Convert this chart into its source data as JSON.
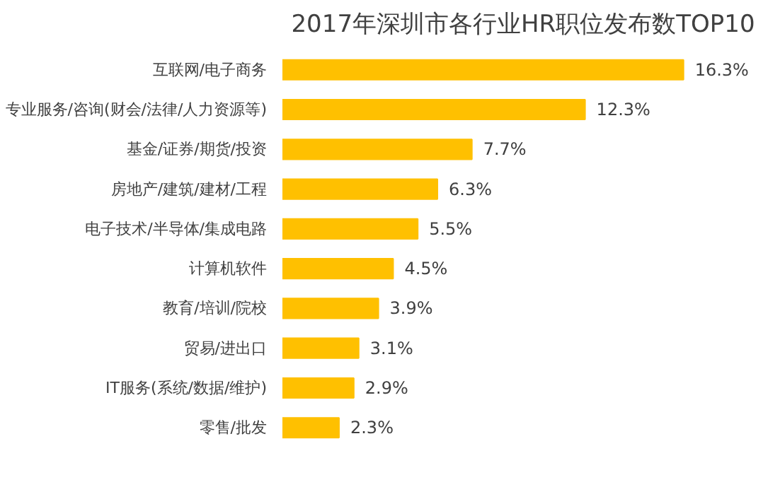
{
  "chart_data": {
    "type": "bar",
    "orientation": "horizontal",
    "title": "2017年深圳市各行业HR职位发布数TOP10",
    "categories": [
      "互联网/电子商务",
      "专业服务/咨询(财会/法律/人力资源等)",
      "基金/证券/期货/投资",
      "房地产/建筑/建材/工程",
      "电子技术/半导体/集成电路",
      "计算机软件",
      "教育/培训/院校",
      "贸易/进出口",
      "IT服务(系统/数据/维护)",
      "零售/批发"
    ],
    "values": [
      16.3,
      12.3,
      7.7,
      6.3,
      5.5,
      4.5,
      3.9,
      3.1,
      2.9,
      2.3
    ],
    "value_labels": [
      "16.3%",
      "12.3%",
      "7.7%",
      "6.3%",
      "5.5%",
      "4.5%",
      "3.9%",
      "3.1%",
      "2.9%",
      "2.3%"
    ],
    "color": "#ffc000",
    "grid": false,
    "tick_labels": "y"
  }
}
